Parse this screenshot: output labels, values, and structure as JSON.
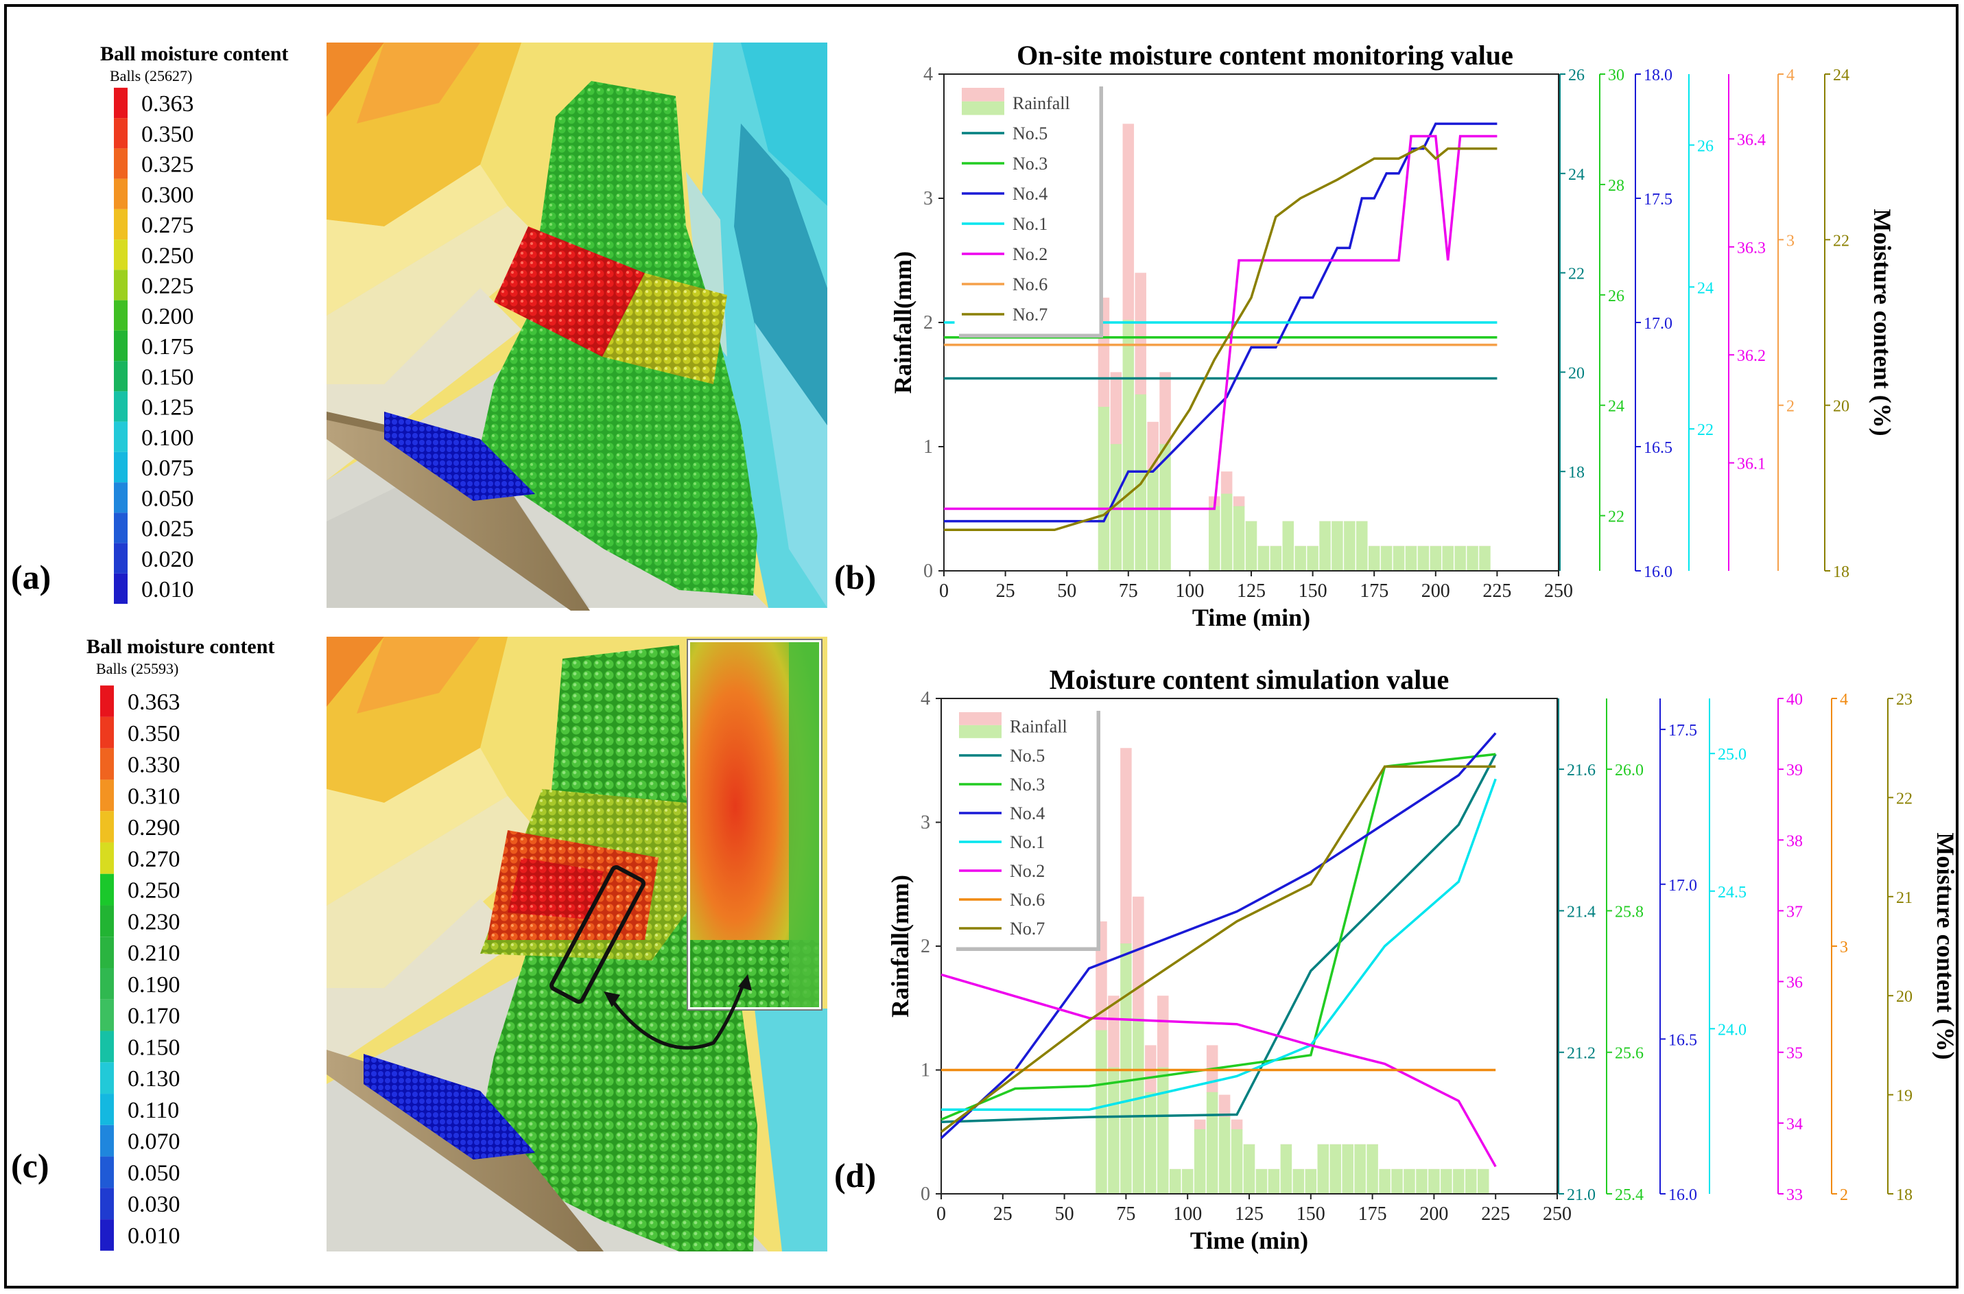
{
  "panels": {
    "a": {
      "letter": "(a)",
      "legend_title": "Ball moisture content",
      "legend_subtitle": "Balls (25627)",
      "levels": [
        "0.363",
        "0.350",
        "0.325",
        "0.300",
        "0.275",
        "0.250",
        "0.225",
        "0.200",
        "0.175",
        "0.150",
        "0.125",
        "0.100",
        "0.075",
        "0.050",
        "0.025",
        "0.020",
        "0.010"
      ],
      "colors": [
        "#e8141c",
        "#ee3a1e",
        "#f0641f",
        "#f39322",
        "#f0c021",
        "#d8dc20",
        "#9cd01e",
        "#3fbf23",
        "#22b433",
        "#18b45d",
        "#16c1a5",
        "#22c9d8",
        "#14b8e0",
        "#1f86dd",
        "#1f5ad6",
        "#1f3bd0",
        "#1c1cc8"
      ]
    },
    "b": {
      "letter": "(b)",
      "chart_title": "On-site moisture content monitoring value"
    },
    "c": {
      "letter": "(c)",
      "legend_title": "Ball moisture content",
      "legend_subtitle": "Balls (25593)",
      "levels": [
        "0.363",
        "0.350",
        "0.330",
        "0.310",
        "0.290",
        "0.270",
        "0.250",
        "0.230",
        "0.210",
        "0.190",
        "0.170",
        "0.150",
        "0.130",
        "0.110",
        "0.070",
        "0.050",
        "0.030",
        "0.010"
      ],
      "colors": [
        "#e8141c",
        "#ee3a1e",
        "#f0641f",
        "#f39322",
        "#f0c021",
        "#d8dc20",
        "#1ac82b",
        "#22b433",
        "#2ab440",
        "#30b850",
        "#3cc060",
        "#16c1a5",
        "#22c9d8",
        "#14b8e0",
        "#1f86dd",
        "#1f5ad6",
        "#1f3bd0",
        "#1c1cc8"
      ]
    },
    "d": {
      "letter": "(d)",
      "chart_title": "Moisture content simulation value"
    }
  },
  "chart_data": [
    {
      "type": "line",
      "title": "On-site moisture content monitoring value",
      "xlabel": "Time (min)",
      "ylabel": "Rainfall(mm)",
      "ylabel_right": "Moisture content (%)",
      "xlim": [
        0,
        250
      ],
      "xticks": [
        "0",
        "25",
        "50",
        "75",
        "100",
        "125",
        "150",
        "175",
        "200",
        "225",
        "250"
      ],
      "ylim": [
        0,
        4
      ],
      "yticks": [
        "0",
        "1",
        "2",
        "3",
        "4"
      ],
      "rainfall": {
        "name": "Rainfall",
        "x": [
          65,
          70,
          75,
          80,
          85,
          90,
          110,
          115,
          120,
          125,
          130,
          135,
          140,
          145,
          150,
          155,
          160,
          165,
          170,
          175,
          180,
          185,
          190,
          195,
          200,
          205,
          210,
          215,
          220
        ],
        "values": [
          2.2,
          1.6,
          3.6,
          2.4,
          1.2,
          1.6,
          0.6,
          0.8,
          0.6,
          0.4,
          0.2,
          0.2,
          0.4,
          0.2,
          0.2,
          0.4,
          0.4,
          0.4,
          0.4,
          0.2,
          0.2,
          0.2,
          0.2,
          0.2,
          0.2,
          0.2,
          0.2,
          0.2,
          0.2
        ]
      },
      "extra_axes": [
        {
          "name": "No.5 axis",
          "color": "#008080",
          "ylim": [
            16,
            26
          ],
          "ticks": [
            "18",
            "20",
            "22",
            "24",
            "26"
          ]
        },
        {
          "name": "No.3 axis",
          "color": "#22cc22",
          "ylim": [
            21,
            30
          ],
          "ticks": [
            "22",
            "24",
            "26",
            "28",
            "30"
          ]
        },
        {
          "name": "No.4 axis",
          "color": "#1a1ad6",
          "ylim": [
            16,
            18
          ],
          "ticks": [
            "16.0",
            "16.5",
            "17.0",
            "17.5",
            "18.0"
          ]
        },
        {
          "name": "No.1 axis",
          "color": "#00e5ee",
          "ylim": [
            20,
            27
          ],
          "ticks": [
            "22",
            "24",
            "26"
          ]
        },
        {
          "name": "No.2 axis",
          "color": "#ee00ee",
          "ylim": [
            36,
            36.46
          ],
          "ticks": [
            "36.1",
            "36.2",
            "36.3",
            "36.4"
          ]
        },
        {
          "name": "No.6 axis",
          "color": "#f5a04a",
          "ylim": [
            1,
            4
          ],
          "ticks": [
            "2",
            "3",
            "4"
          ]
        },
        {
          "name": "No.7 axis",
          "color": "#8b8000",
          "ylim": [
            18,
            24
          ],
          "ticks": [
            "18",
            "20",
            "22",
            "24"
          ]
        }
      ],
      "series": [
        {
          "name": "No.5",
          "color": "#008080",
          "x": [
            0,
            225
          ],
          "values": [
            1.55,
            1.55
          ]
        },
        {
          "name": "No.3",
          "color": "#22cc22",
          "x": [
            0,
            225
          ],
          "values": [
            1.88,
            1.88
          ]
        },
        {
          "name": "No.4",
          "color": "#1a1ad6",
          "x": [
            0,
            65,
            70,
            75,
            85,
            90,
            95,
            100,
            105,
            110,
            115,
            120,
            125,
            130,
            135,
            140,
            145,
            150,
            155,
            160,
            165,
            170,
            175,
            180,
            185,
            190,
            195,
            200,
            225
          ],
          "values": [
            0.4,
            0.4,
            0.6,
            0.8,
            0.8,
            0.9,
            1.0,
            1.1,
            1.2,
            1.3,
            1.4,
            1.6,
            1.8,
            1.8,
            1.8,
            2.0,
            2.2,
            2.2,
            2.4,
            2.6,
            2.6,
            3.0,
            3.0,
            3.2,
            3.2,
            3.4,
            3.4,
            3.6,
            3.6
          ]
        },
        {
          "name": "No.1",
          "color": "#00e5ee",
          "x": [
            0,
            225
          ],
          "values": [
            2.0,
            2.0
          ]
        },
        {
          "name": "No.2",
          "color": "#ee00ee",
          "x": [
            0,
            105,
            110,
            115,
            120,
            185,
            190,
            200,
            205,
            210,
            225
          ],
          "values": [
            0.5,
            0.5,
            0.5,
            1.5,
            2.5,
            2.5,
            3.5,
            3.5,
            2.5,
            3.5,
            3.5
          ]
        },
        {
          "name": "No.6",
          "color": "#f5a04a",
          "x": [
            0,
            225
          ],
          "values": [
            1.82,
            1.82
          ]
        },
        {
          "name": "No.7",
          "color": "#8b8000",
          "x": [
            0,
            45,
            65,
            80,
            100,
            110,
            125,
            135,
            145,
            160,
            175,
            185,
            195,
            200,
            205,
            225
          ],
          "values": [
            0.33,
            0.33,
            0.45,
            0.7,
            1.3,
            1.7,
            2.2,
            2.85,
            3.0,
            3.15,
            3.32,
            3.32,
            3.42,
            3.32,
            3.4,
            3.4
          ]
        }
      ]
    },
    {
      "type": "line",
      "title": "Moisture content simulation value",
      "xlabel": "Time (min)",
      "ylabel": "Rainfall(mm)",
      "ylabel_right": "Moisture content (%)",
      "xlim": [
        0,
        250
      ],
      "xticks": [
        "0",
        "25",
        "50",
        "75",
        "100",
        "125",
        "150",
        "175",
        "200",
        "225",
        "250"
      ],
      "ylim": [
        0,
        4
      ],
      "yticks": [
        "0",
        "1",
        "2",
        "3",
        "4"
      ],
      "rainfall": {
        "name": "Rainfall",
        "x": [
          65,
          70,
          75,
          80,
          85,
          90,
          95,
          100,
          105,
          110,
          115,
          120,
          125,
          130,
          135,
          140,
          145,
          150,
          155,
          160,
          165,
          170,
          175,
          180,
          185,
          190,
          195,
          200,
          205,
          210,
          215,
          220
        ],
        "values": [
          2.2,
          1.6,
          3.6,
          2.4,
          1.2,
          1.6,
          0.2,
          0.2,
          0.6,
          1.2,
          0.8,
          0.6,
          0.4,
          0.2,
          0.2,
          0.4,
          0.2,
          0.2,
          0.4,
          0.4,
          0.4,
          0.4,
          0.4,
          0.2,
          0.2,
          0.2,
          0.2,
          0.2,
          0.2,
          0.2,
          0.2,
          0.2
        ]
      },
      "extra_axes": [
        {
          "name": "No.5 axis",
          "color": "#008080",
          "ylim": [
            21.0,
            21.7
          ],
          "ticks": [
            "21.0",
            "21.2",
            "21.4",
            "21.6"
          ]
        },
        {
          "name": "No.3 axis",
          "color": "#22cc22",
          "ylim": [
            25.4,
            26.1
          ],
          "ticks": [
            "25.4",
            "25.6",
            "25.8",
            "26.0"
          ]
        },
        {
          "name": "No.4 axis",
          "color": "#1a1ad6",
          "ylim": [
            16.0,
            17.6
          ],
          "ticks": [
            "16.0",
            "16.5",
            "17.0",
            "17.5"
          ]
        },
        {
          "name": "No.1 axis",
          "color": "#00e5ee",
          "ylim": [
            23.4,
            25.2
          ],
          "ticks": [
            "24.0",
            "24.5",
            "25.0"
          ]
        },
        {
          "name": "No.2 axis",
          "color": "#ee00ee",
          "ylim": [
            33,
            40
          ],
          "ticks": [
            "33",
            "34",
            "35",
            "36",
            "37",
            "38",
            "39",
            "40"
          ]
        },
        {
          "name": "No.6 axis",
          "color": "#f08a10",
          "ylim": [
            2,
            4
          ],
          "ticks": [
            "2",
            "3",
            "4"
          ]
        },
        {
          "name": "No.7 axis",
          "color": "#8b8000",
          "ylim": [
            18,
            23
          ],
          "ticks": [
            "18",
            "19",
            "20",
            "21",
            "22",
            "23"
          ]
        }
      ],
      "series": [
        {
          "name": "No.5",
          "color": "#008080",
          "x": [
            0,
            60,
            120,
            150,
            210,
            225
          ],
          "values": [
            0.58,
            0.62,
            0.64,
            1.8,
            2.98,
            3.55
          ]
        },
        {
          "name": "No.3",
          "color": "#22cc22",
          "x": [
            0,
            30,
            60,
            150,
            180,
            225
          ],
          "values": [
            0.6,
            0.85,
            0.87,
            1.12,
            3.45,
            3.55
          ]
        },
        {
          "name": "No.4",
          "color": "#1a1ad6",
          "x": [
            0,
            30,
            60,
            120,
            150,
            210,
            225
          ],
          "values": [
            0.45,
            1.0,
            1.82,
            2.28,
            2.6,
            3.38,
            3.72
          ]
        },
        {
          "name": "No.1",
          "color": "#00e5ee",
          "x": [
            0,
            60,
            120,
            150,
            180,
            210,
            225
          ],
          "values": [
            0.68,
            0.68,
            0.95,
            1.2,
            2.0,
            2.52,
            3.35
          ]
        },
        {
          "name": "No.2",
          "color": "#ee00ee",
          "x": [
            0,
            60,
            120,
            150,
            180,
            210,
            225
          ],
          "values": [
            1.77,
            1.42,
            1.37,
            1.2,
            1.05,
            0.75,
            0.22
          ]
        },
        {
          "name": "No.6",
          "color": "#f08a10",
          "x": [
            0,
            225
          ],
          "values": [
            1.0,
            1.0
          ]
        },
        {
          "name": "No.7",
          "color": "#8b8000",
          "x": [
            0,
            60,
            120,
            150,
            180,
            225
          ],
          "values": [
            0.5,
            1.4,
            2.2,
            2.5,
            3.45,
            3.45
          ]
        }
      ]
    }
  ]
}
